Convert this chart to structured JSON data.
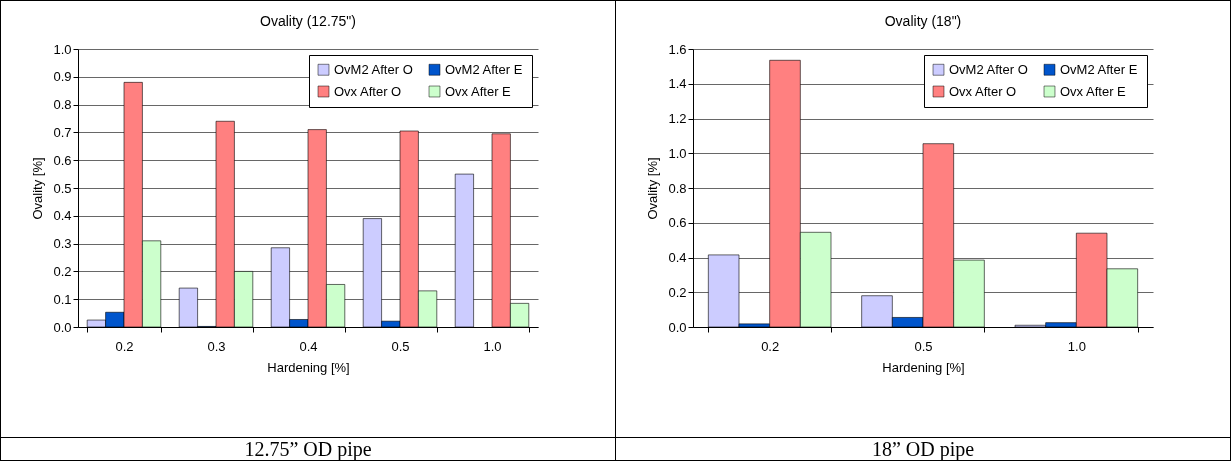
{
  "chart_data": [
    {
      "type": "bar",
      "title": "Ovality (12.75\")",
      "xlabel": "Hardening [%]",
      "ylabel": "Ovality [%]",
      "categories": [
        "0.2",
        "0.3",
        "0.4",
        "0.5",
        "1.0"
      ],
      "series": [
        {
          "name": "OvM2 After O",
          "color": "#ccccff",
          "values": [
            0.025,
            0.14,
            0.285,
            0.39,
            0.55
          ]
        },
        {
          "name": "OvM2 After E",
          "color": "#0055cc",
          "values": [
            0.053,
            0.002,
            0.027,
            0.021,
            null
          ]
        },
        {
          "name": "Ovx After O",
          "color": "#ff8080",
          "values": [
            0.88,
            0.74,
            0.71,
            0.705,
            0.695
          ]
        },
        {
          "name": "Ovx After E",
          "color": "#ccffcc",
          "values": [
            0.31,
            0.2,
            0.153,
            0.13,
            0.085
          ]
        }
      ],
      "ylim": [
        0,
        1
      ],
      "yticks": [
        {
          "value": 0,
          "label": "0.0"
        },
        {
          "value": 0.1,
          "label": "0.1"
        },
        {
          "value": 0.2,
          "label": "0.2"
        },
        {
          "value": 0.3,
          "label": "0.3"
        },
        {
          "value": 0.4,
          "label": "0.4"
        },
        {
          "value": 0.5,
          "label": "0.5"
        },
        {
          "value": 0.6,
          "label": "0.6"
        },
        {
          "value": 0.7,
          "label": "0.7"
        },
        {
          "value": 0.8,
          "label": "0.8"
        },
        {
          "value": 0.9,
          "label": "0.9"
        },
        {
          "value": 1,
          "label": "1.0"
        }
      ],
      "grid": "y",
      "legend": "top right",
      "annotations": [
        "12.75” OD pipe"
      ]
    },
    {
      "type": "bar",
      "title": "Ovality (18\")",
      "xlabel": "Hardening [%]",
      "ylabel": "Ovality [%]",
      "categories": [
        "0.2",
        "0.5",
        "1.0"
      ],
      "series": [
        {
          "name": "OvM2 After O",
          "color": "#ccccff",
          "values": [
            0.415,
            0.18,
            0.01
          ]
        },
        {
          "name": "OvM2 After E",
          "color": "#0055cc",
          "values": [
            0.018,
            0.055,
            0.025
          ]
        },
        {
          "name": "Ovx After O",
          "color": "#ff8080",
          "values": [
            1.535,
            1.055,
            0.54
          ]
        },
        {
          "name": "Ovx After E",
          "color": "#ccffcc",
          "values": [
            0.545,
            0.385,
            0.335
          ]
        }
      ],
      "ylim": [
        0,
        1.6
      ],
      "yticks": [
        {
          "value": 0,
          "label": "0.0"
        },
        {
          "value": 0.2,
          "label": "0.2"
        },
        {
          "value": 0.4,
          "label": "0.4"
        },
        {
          "value": 0.6,
          "label": "0.6"
        },
        {
          "value": 0.8,
          "label": "0.8"
        },
        {
          "value": 1,
          "label": "1.0"
        },
        {
          "value": 1.2,
          "label": "1.2"
        },
        {
          "value": 1.4,
          "label": "1.4"
        },
        {
          "value": 1.6,
          "label": "1.6"
        }
      ],
      "grid": "y",
      "legend": "top right",
      "annotations": [
        "18” OD pipe"
      ]
    }
  ]
}
